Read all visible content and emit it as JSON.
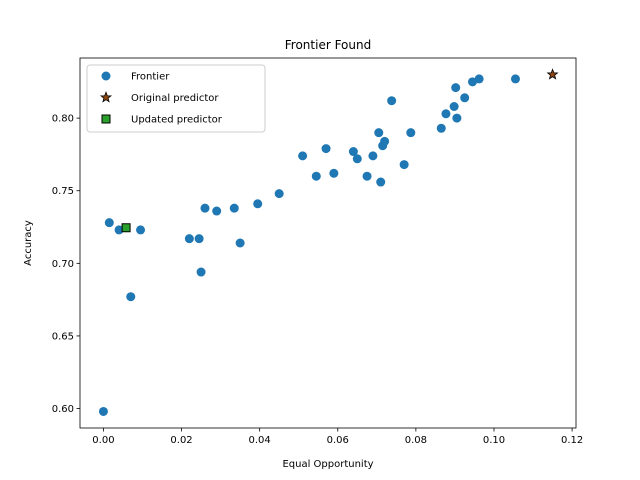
{
  "chart_data": {
    "type": "scatter",
    "title": "Frontier Found",
    "xlabel": "Equal Opportunity",
    "ylabel": "Accuracy",
    "xlim": [
      -0.006,
      0.121
    ],
    "ylim": [
      0.5866,
      0.8414
    ],
    "xticks": [
      0.0,
      0.02,
      0.04,
      0.06,
      0.08,
      0.1,
      0.12
    ],
    "xtick_labels": [
      "0.00",
      "0.02",
      "0.04",
      "0.06",
      "0.08",
      "0.10",
      "0.12"
    ],
    "yticks": [
      0.6,
      0.65,
      0.7,
      0.75,
      0.8
    ],
    "ytick_labels": [
      "0.60",
      "0.65",
      "0.70",
      "0.75",
      "0.80"
    ],
    "grid": false,
    "legend": {
      "position": "top-left"
    },
    "series": [
      {
        "name": "Frontier",
        "marker": "circle",
        "color": "#1f77b4",
        "points": [
          [
            0.0,
            0.598
          ],
          [
            0.0015,
            0.728
          ],
          [
            0.004,
            0.723
          ],
          [
            0.007,
            0.677
          ],
          [
            0.0095,
            0.723
          ],
          [
            0.022,
            0.717
          ],
          [
            0.0245,
            0.717
          ],
          [
            0.025,
            0.694
          ],
          [
            0.026,
            0.738
          ],
          [
            0.029,
            0.736
          ],
          [
            0.0335,
            0.738
          ],
          [
            0.035,
            0.714
          ],
          [
            0.0395,
            0.741
          ],
          [
            0.045,
            0.748
          ],
          [
            0.051,
            0.774
          ],
          [
            0.0545,
            0.76
          ],
          [
            0.057,
            0.779
          ],
          [
            0.059,
            0.762
          ],
          [
            0.064,
            0.777
          ],
          [
            0.065,
            0.772
          ],
          [
            0.0675,
            0.76
          ],
          [
            0.069,
            0.774
          ],
          [
            0.0705,
            0.79
          ],
          [
            0.071,
            0.756
          ],
          [
            0.0715,
            0.781
          ],
          [
            0.072,
            0.784
          ],
          [
            0.0738,
            0.812
          ],
          [
            0.077,
            0.768
          ],
          [
            0.0787,
            0.79
          ],
          [
            0.0865,
            0.793
          ],
          [
            0.0877,
            0.803
          ],
          [
            0.0898,
            0.808
          ],
          [
            0.0902,
            0.821
          ],
          [
            0.0905,
            0.8
          ],
          [
            0.0925,
            0.814
          ],
          [
            0.0945,
            0.825
          ],
          [
            0.0962,
            0.827
          ],
          [
            0.1055,
            0.827
          ]
        ]
      },
      {
        "name": "Original predictor",
        "marker": "star",
        "color": "#8b4513",
        "edgecolor": "#000000",
        "points": [
          [
            0.115,
            0.83
          ]
        ]
      },
      {
        "name": "Updated predictor",
        "marker": "square",
        "color": "#2ca02c",
        "edgecolor": "#000000",
        "points": [
          [
            0.0058,
            0.7245
          ]
        ]
      }
    ]
  }
}
